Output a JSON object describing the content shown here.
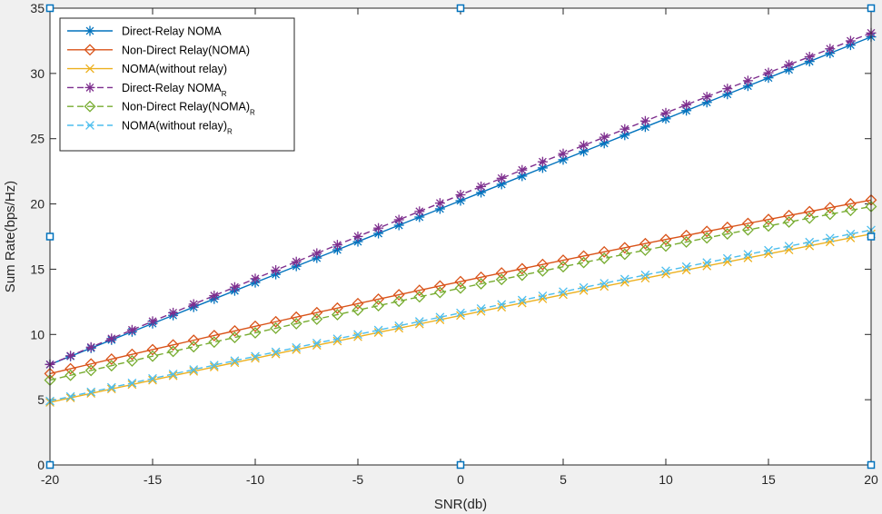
{
  "chart_data": {
    "type": "line",
    "title": "",
    "xlabel": "SNR(db)",
    "ylabel": "Sum Rate(bps/Hz)",
    "xlim": [
      -20,
      20
    ],
    "ylim": [
      0,
      35
    ],
    "xticks": [
      -20,
      -15,
      -10,
      -5,
      0,
      5,
      10,
      15,
      20
    ],
    "yticks": [
      0,
      5,
      10,
      15,
      20,
      25,
      30,
      35
    ],
    "legend_position": "top-left",
    "series": [
      {
        "name": "Direct-Relay NOMA",
        "subscript": "",
        "color": "#0072bd",
        "line": "solid",
        "marker": "asterisk",
        "start": [
          -20,
          7.7
        ],
        "end": [
          20,
          32.8
        ],
        "curve": 0.0
      },
      {
        "name": "Non-Direct Relay(NOMA)",
        "subscript": "",
        "color": "#d95319",
        "line": "solid",
        "marker": "diamond",
        "start": [
          -20,
          7.0
        ],
        "end": [
          20,
          20.3
        ],
        "curve": 0.4
      },
      {
        "name": "NOMA(without relay)",
        "subscript": "",
        "color": "#edb120",
        "line": "solid",
        "marker": "x",
        "start": [
          -20,
          4.8
        ],
        "end": [
          20,
          17.7
        ],
        "curve": 0.2
      },
      {
        "name": "Direct-Relay NOMA",
        "subscript": "R",
        "color": "#7e2f8e",
        "line": "dashed",
        "marker": "asterisk",
        "start": [
          -20,
          7.7
        ],
        "end": [
          20,
          33.1
        ],
        "curve": 0.3
      },
      {
        "name": "Non-Direct Relay(NOMA)",
        "subscript": "R",
        "color": "#77ac30",
        "line": "dashed",
        "marker": "diamond",
        "start": [
          -20,
          6.5
        ],
        "end": [
          20,
          19.8
        ],
        "curve": 0.4
      },
      {
        "name": "NOMA(without relay)",
        "subscript": "R",
        "color": "#4dbeee",
        "line": "dashed",
        "marker": "x",
        "start": [
          -20,
          4.9
        ],
        "end": [
          20,
          18.0
        ],
        "curve": 0.2
      }
    ]
  }
}
